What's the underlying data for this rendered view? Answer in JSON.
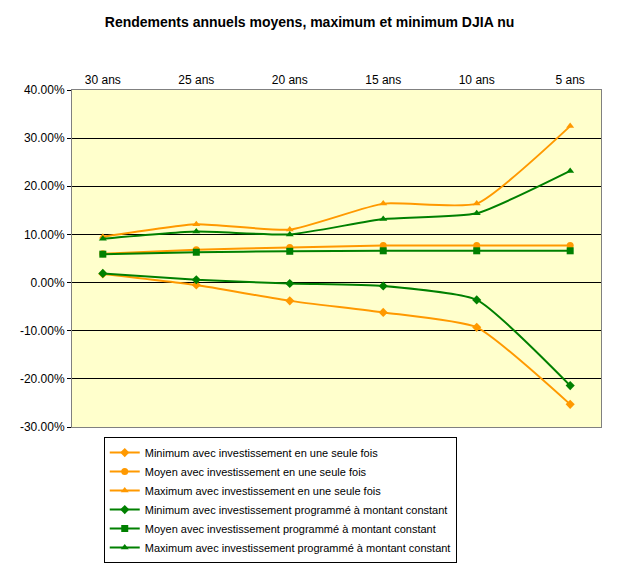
{
  "chart_data": {
    "type": "line",
    "title": "Rendements annuels moyens, maximum et minimum DJIA nu",
    "categories": [
      "30 ans",
      "25 ans",
      "20 ans",
      "15 ans",
      "10 ans",
      "5 ans"
    ],
    "series": [
      {
        "name": "Minimum avec investissement en une seule fois",
        "color": "#ff9900",
        "marker": "diamond",
        "values": [
          1.8,
          -0.5,
          -3.8,
          -6.2,
          -9.3,
          -25.3
        ]
      },
      {
        "name": "Moyen avec investissement en une seule fois",
        "color": "#ff9900",
        "marker": "circle",
        "values": [
          6.0,
          6.8,
          7.3,
          7.7,
          7.7,
          7.7
        ]
      },
      {
        "name": "Maximum avec investissement en une seule fois",
        "color": "#ff9900",
        "marker": "triangle-up",
        "values": [
          9.5,
          12.1,
          11.0,
          16.4,
          16.4,
          32.5
        ]
      },
      {
        "name": "Minimum avec investissement programmé à montant constant",
        "color": "#008000",
        "marker": "diamond",
        "values": [
          1.9,
          0.6,
          -0.2,
          -0.7,
          -3.6,
          -21.4
        ]
      },
      {
        "name": "Moyen avec investissement programmé à montant constant",
        "color": "#008000",
        "marker": "square",
        "values": [
          5.9,
          6.3,
          6.5,
          6.6,
          6.6,
          6.6
        ]
      },
      {
        "name": "Maximum avec investissement programmé à montant constant",
        "color": "#008000",
        "marker": "triangle-up",
        "values": [
          9.1,
          10.6,
          10.0,
          13.2,
          14.4,
          23.2
        ]
      }
    ],
    "ylim": [
      -30,
      40
    ],
    "yticks": [
      {
        "value": -30,
        "label": "-30.00%"
      },
      {
        "value": -20,
        "label": "-20.00%"
      },
      {
        "value": -10,
        "label": "-10.00%"
      },
      {
        "value": 0,
        "label": "0.00%"
      },
      {
        "value": 10,
        "label": "10.00%"
      },
      {
        "value": 20,
        "label": "20.00%"
      },
      {
        "value": 30,
        "label": "30.00%"
      },
      {
        "value": 40,
        "label": "40.00%"
      }
    ],
    "grid": true,
    "legend": "bottom"
  }
}
